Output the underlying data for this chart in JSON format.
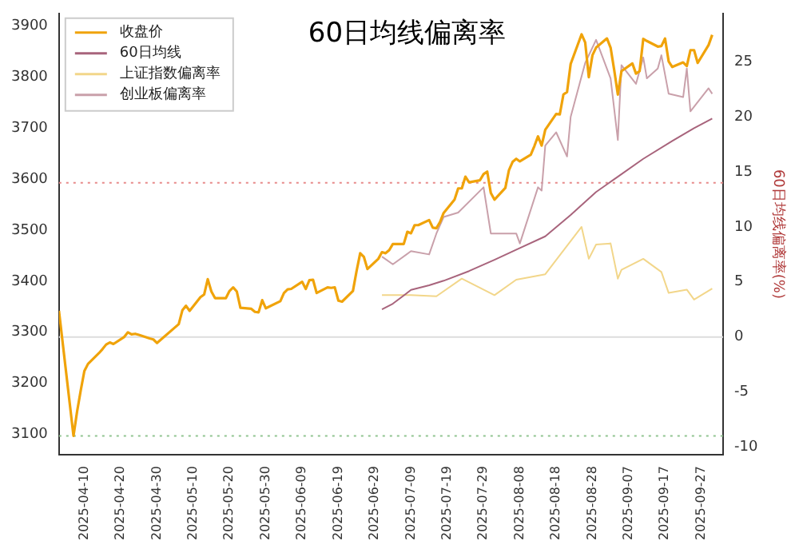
{
  "chart_data": {
    "type": "line",
    "title": "60日均线偏离率",
    "y2label": "60日均线偏离率(%)",
    "legend": "top left",
    "grid": false,
    "marker": "none",
    "line_style": "solid",
    "xlim": [
      "2025-04-03",
      "2025-10-03"
    ],
    "xticks": [
      "2025-04-10",
      "2025-04-20",
      "2025-04-30",
      "2025-05-10",
      "2025-05-20",
      "2025-05-30",
      "2025-06-09",
      "2025-06-19",
      "2025-06-29",
      "2025-07-09",
      "2025-07-19",
      "2025-07-29",
      "2025-08-08",
      "2025-08-18",
      "2025-08-28",
      "2025-09-07",
      "2025-09-17",
      "2025-09-27"
    ],
    "ylim": [
      3060,
      3925
    ],
    "yticks": [
      3100,
      3200,
      3300,
      3400,
      3500,
      3600,
      3700,
      3800,
      3900
    ],
    "y2lim": [
      -10.7,
      29.4
    ],
    "y2ticks": [
      -10,
      -5,
      0,
      5,
      10,
      15,
      20,
      25
    ],
    "ref_lines": [
      {
        "axis": "y2",
        "value": 14,
        "color": "#e88a8a",
        "line_style": "dotted"
      },
      {
        "axis": "y2",
        "value": 0,
        "color": "#dddddd",
        "line_style": "solid"
      },
      {
        "axis": "y2",
        "value": -9,
        "color": "#8fc48f",
        "line_style": "dotted"
      }
    ],
    "series": [
      {
        "name": "收盘价",
        "color": "#f0a30a",
        "x": [
          "2025-04-03",
          "2025-04-07",
          "2025-04-08",
          "2025-04-09",
          "2025-04-10",
          "2025-04-11",
          "2025-04-14",
          "2025-04-15",
          "2025-04-16",
          "2025-04-17",
          "2025-04-18",
          "2025-04-21",
          "2025-04-22",
          "2025-04-23",
          "2025-04-24",
          "2025-04-25",
          "2025-04-28",
          "2025-04-29",
          "2025-04-30",
          "2025-05-06",
          "2025-05-07",
          "2025-05-08",
          "2025-05-09",
          "2025-05-12",
          "2025-05-13",
          "2025-05-14",
          "2025-05-15",
          "2025-05-16",
          "2025-05-19",
          "2025-05-20",
          "2025-05-21",
          "2025-05-22",
          "2025-05-23",
          "2025-05-26",
          "2025-05-27",
          "2025-05-28",
          "2025-05-29",
          "2025-05-30",
          "2025-06-03",
          "2025-06-04",
          "2025-06-05",
          "2025-06-06",
          "2025-06-09",
          "2025-06-10",
          "2025-06-11",
          "2025-06-12",
          "2025-06-13",
          "2025-06-16",
          "2025-06-17",
          "2025-06-18",
          "2025-06-19",
          "2025-06-20",
          "2025-06-23",
          "2025-06-24",
          "2025-06-25",
          "2025-06-26",
          "2025-06-27",
          "2025-06-30",
          "2025-07-01",
          "2025-07-02",
          "2025-07-03",
          "2025-07-04",
          "2025-07-07",
          "2025-07-08",
          "2025-07-09",
          "2025-07-10",
          "2025-07-11",
          "2025-07-14",
          "2025-07-15",
          "2025-07-16",
          "2025-07-17",
          "2025-07-18",
          "2025-07-21",
          "2025-07-22",
          "2025-07-23",
          "2025-07-24",
          "2025-07-25",
          "2025-07-28",
          "2025-07-29",
          "2025-07-30",
          "2025-07-31",
          "2025-08-01",
          "2025-08-04",
          "2025-08-05",
          "2025-08-06",
          "2025-08-07",
          "2025-08-08",
          "2025-08-11",
          "2025-08-12",
          "2025-08-13",
          "2025-08-14",
          "2025-08-15",
          "2025-08-18",
          "2025-08-19",
          "2025-08-20",
          "2025-08-21",
          "2025-08-22",
          "2025-08-25",
          "2025-08-26",
          "2025-08-27",
          "2025-08-28",
          "2025-08-29",
          "2025-09-01",
          "2025-09-02",
          "2025-09-03",
          "2025-09-04",
          "2025-09-05",
          "2025-09-08",
          "2025-09-09",
          "2025-09-10",
          "2025-09-11",
          "2025-09-12",
          "2025-09-15",
          "2025-09-16",
          "2025-09-17",
          "2025-09-18",
          "2025-09-19",
          "2025-09-22",
          "2025-09-23",
          "2025-09-24",
          "2025-09-25",
          "2025-09-26",
          "2025-09-29",
          "2025-09-30"
        ],
        "values": [
          3342,
          3097,
          3145,
          3186,
          3224,
          3238,
          3259,
          3267,
          3276,
          3280,
          3277,
          3291,
          3300,
          3296,
          3297,
          3295,
          3288,
          3286,
          3279,
          3316,
          3343,
          3352,
          3342,
          3369,
          3374,
          3404,
          3380,
          3367,
          3367,
          3381,
          3388,
          3380,
          3348,
          3346,
          3340,
          3339,
          3363,
          3347,
          3361,
          3377,
          3384,
          3385,
          3399,
          3385,
          3402,
          3403,
          3377,
          3388,
          3387,
          3388,
          3362,
          3360,
          3381,
          3420,
          3455,
          3448,
          3424,
          3444,
          3457,
          3455,
          3461,
          3473,
          3473,
          3497,
          3494,
          3510,
          3510,
          3520,
          3505,
          3504,
          3516,
          3534,
          3560,
          3582,
          3582,
          3605,
          3594,
          3598,
          3610,
          3615,
          3573,
          3560,
          3583,
          3618,
          3634,
          3640,
          3635,
          3648,
          3665,
          3684,
          3666,
          3697,
          3728,
          3727,
          3766,
          3771,
          3826,
          3884,
          3868,
          3800,
          3843,
          3858,
          3876,
          3858,
          3814,
          3766,
          3812,
          3827,
          3807,
          3812,
          3875,
          3871,
          3860,
          3861,
          3876,
          3831,
          3820,
          3829,
          3822,
          3853,
          3853,
          3828,
          3863,
          3883
        ]
      },
      {
        "name": "60日均线",
        "color": "#a8647c",
        "x": [
          "2025-07-01",
          "2025-07-04",
          "2025-07-09",
          "2025-07-14",
          "2025-07-18",
          "2025-07-25",
          "2025-08-01",
          "2025-08-08",
          "2025-08-15",
          "2025-08-22",
          "2025-08-29",
          "2025-09-04",
          "2025-09-11",
          "2025-09-19",
          "2025-09-25",
          "2025-09-30"
        ],
        "values": [
          3345,
          3356,
          3383,
          3392,
          3401,
          3420,
          3442,
          3465,
          3488,
          3530,
          3575,
          3605,
          3640,
          3675,
          3700,
          3719
        ]
      },
      {
        "name": "上证指数偏离率",
        "color": "#f2d68a",
        "axis": "y2",
        "x": [
          "2025-07-01",
          "2025-07-09",
          "2025-07-16",
          "2025-07-23",
          "2025-08-01",
          "2025-08-07",
          "2025-08-15",
          "2025-08-25",
          "2025-08-27",
          "2025-08-29",
          "2025-09-02",
          "2025-09-04",
          "2025-09-05",
          "2025-09-11",
          "2025-09-16",
          "2025-09-18",
          "2025-09-23",
          "2025-09-25",
          "2025-09-30"
        ],
        "values": [
          3.8,
          3.8,
          3.7,
          5.3,
          3.8,
          5.2,
          5.7,
          10.0,
          7.1,
          8.4,
          8.5,
          5.3,
          6.1,
          7.1,
          5.9,
          4.0,
          4.3,
          3.4,
          4.4
        ]
      },
      {
        "name": "创业板偏离率",
        "color": "#c9a0aa",
        "axis": "y2",
        "x": [
          "2025-07-01",
          "2025-07-04",
          "2025-07-09",
          "2025-07-14",
          "2025-07-16",
          "2025-07-18",
          "2025-07-22",
          "2025-07-29",
          "2025-07-31",
          "2025-08-07",
          "2025-08-08",
          "2025-08-13",
          "2025-08-14",
          "2025-08-15",
          "2025-08-18",
          "2025-08-21",
          "2025-08-22",
          "2025-08-26",
          "2025-08-29",
          "2025-09-02",
          "2025-09-04",
          "2025-09-05",
          "2025-09-09",
          "2025-09-11",
          "2025-09-12",
          "2025-09-15",
          "2025-09-16",
          "2025-09-18",
          "2025-09-22",
          "2025-09-23",
          "2025-09-24",
          "2025-09-29",
          "2025-09-30"
        ],
        "values": [
          7.3,
          6.6,
          7.8,
          7.5,
          9.4,
          10.9,
          11.3,
          13.6,
          9.4,
          9.4,
          8.5,
          13.6,
          13.3,
          17.4,
          18.6,
          16.4,
          20.0,
          24.9,
          27.0,
          23.5,
          17.9,
          24.7,
          23.0,
          25.4,
          23.5,
          24.4,
          25.6,
          22.1,
          21.8,
          24.4,
          20.5,
          22.6,
          22.1
        ]
      }
    ]
  }
}
